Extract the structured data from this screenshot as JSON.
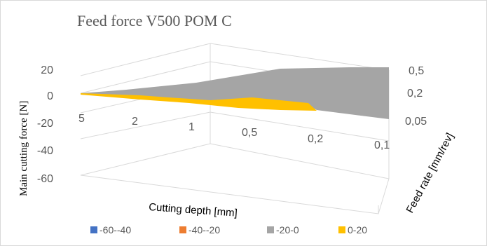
{
  "chart_data": {
    "type": "surface",
    "title": "Feed force V500 POM C",
    "zlabel": "Main cutting force [N]",
    "xlabel": "Cutting depth [mm]",
    "ylabel": "Feed rate [mm/rev]",
    "z_ticks": [
      "20",
      "0",
      "-20",
      "-40",
      "-60"
    ],
    "zlim": [
      -60,
      20
    ],
    "cutting_depth_ticks": [
      "5",
      "2",
      "1",
      "0,5",
      "0,2",
      "0,1"
    ],
    "feed_rate_ticks": [
      "0,5",
      "0,2",
      "0,05"
    ],
    "legend": [
      {
        "label": "-60--40",
        "color": "#4472c4"
      },
      {
        "label": "-40--20",
        "color": "#ed7d31"
      },
      {
        "label": "-20-0",
        "color": "#a5a5a5"
      },
      {
        "label": "0-20",
        "color": "#ffc000"
      }
    ],
    "legend_position": "bottom",
    "grid": true,
    "surface_colors": {
      "negative": "#a5a5a5",
      "positive": "#ffc000"
    }
  }
}
